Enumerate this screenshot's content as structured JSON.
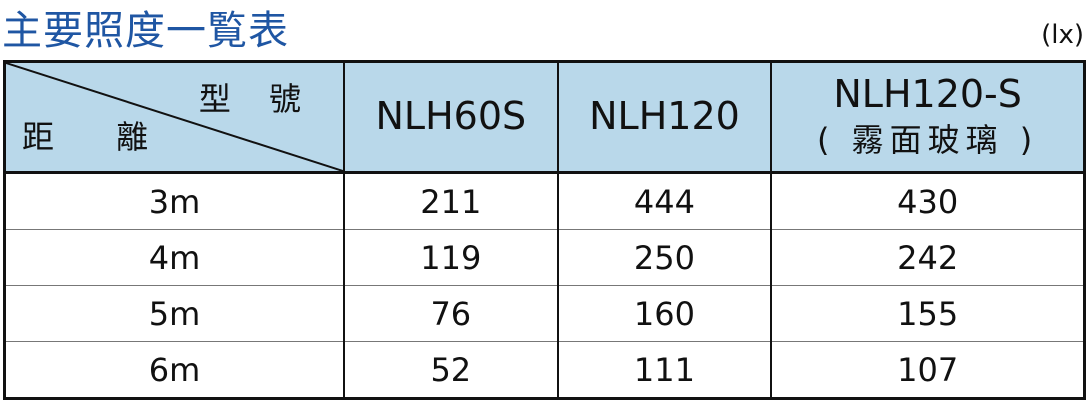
{
  "title": "主要照度一覧表",
  "unit": "(lx)",
  "header": {
    "corner_top": "型 號",
    "corner_bottom": "距 離",
    "columns": [
      {
        "label": "NLH60S"
      },
      {
        "label": "NLH120"
      },
      {
        "label": "NLH120-S",
        "sub": "( 霧面玻璃 )"
      }
    ]
  },
  "rows": [
    {
      "distance": "3m",
      "values": [
        "211",
        "444",
        "430"
      ]
    },
    {
      "distance": "4m",
      "values": [
        "119",
        "250",
        "242"
      ]
    },
    {
      "distance": "5m",
      "values": [
        "76",
        "160",
        "155"
      ]
    },
    {
      "distance": "6m",
      "values": [
        "52",
        "111",
        "107"
      ]
    }
  ],
  "colors": {
    "title": "#1f56a3",
    "header_bg": "#b9d8ea"
  }
}
